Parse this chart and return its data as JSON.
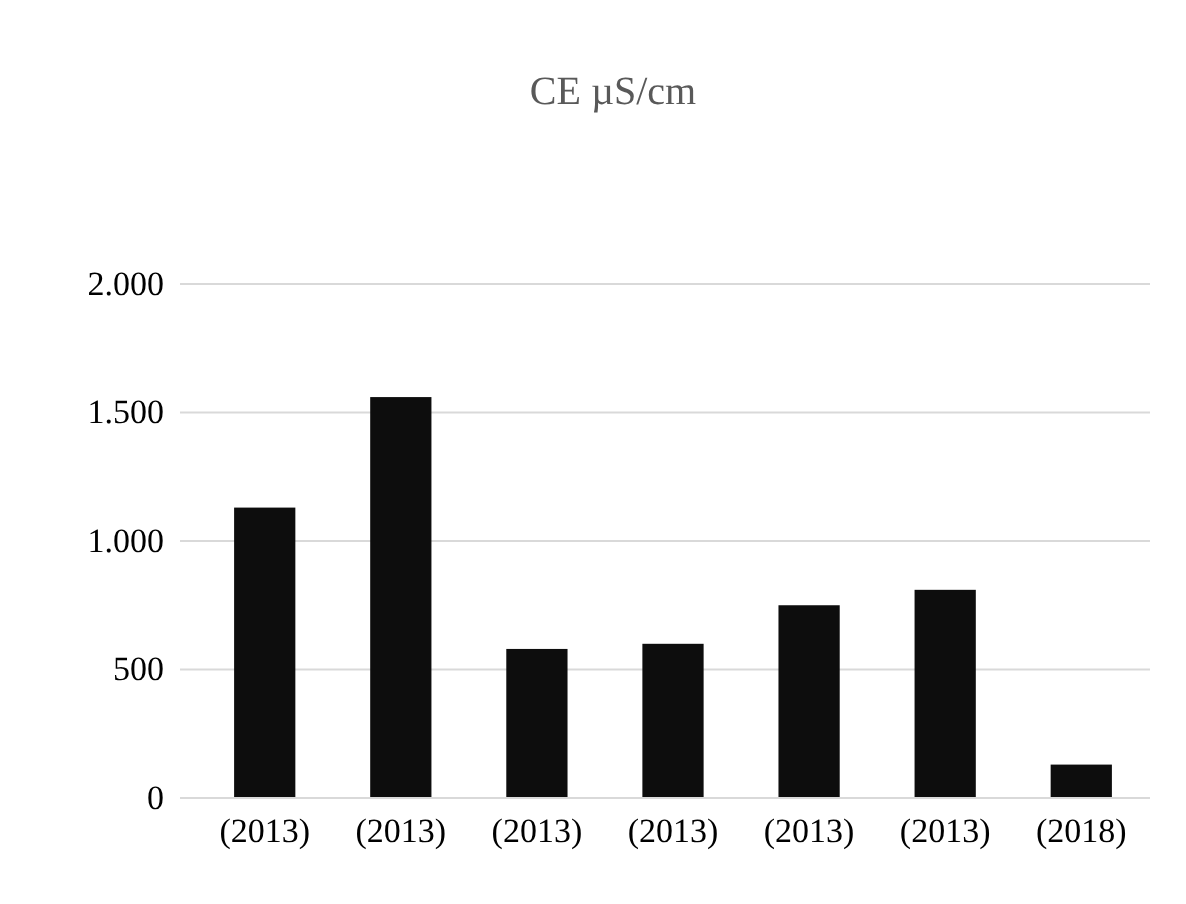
{
  "chart_data": {
    "type": "bar",
    "title": "CE µS/cm",
    "categories": [
      "(2013)",
      "(2013)",
      "(2013)",
      "(2013)",
      "(2013)",
      "(2013)",
      "(2018)"
    ],
    "values": [
      1130,
      1560,
      580,
      600,
      750,
      810,
      130
    ],
    "color": "#0d0d0d",
    "ylim": [
      0,
      2000
    ],
    "yticks": [
      0,
      500,
      {
        "value": 1000,
        "label": "1.000"
      },
      {
        "value": 1500,
        "label": "1.500"
      },
      {
        "value": 2000,
        "label": "2.000"
      }
    ],
    "grid": "y"
  }
}
